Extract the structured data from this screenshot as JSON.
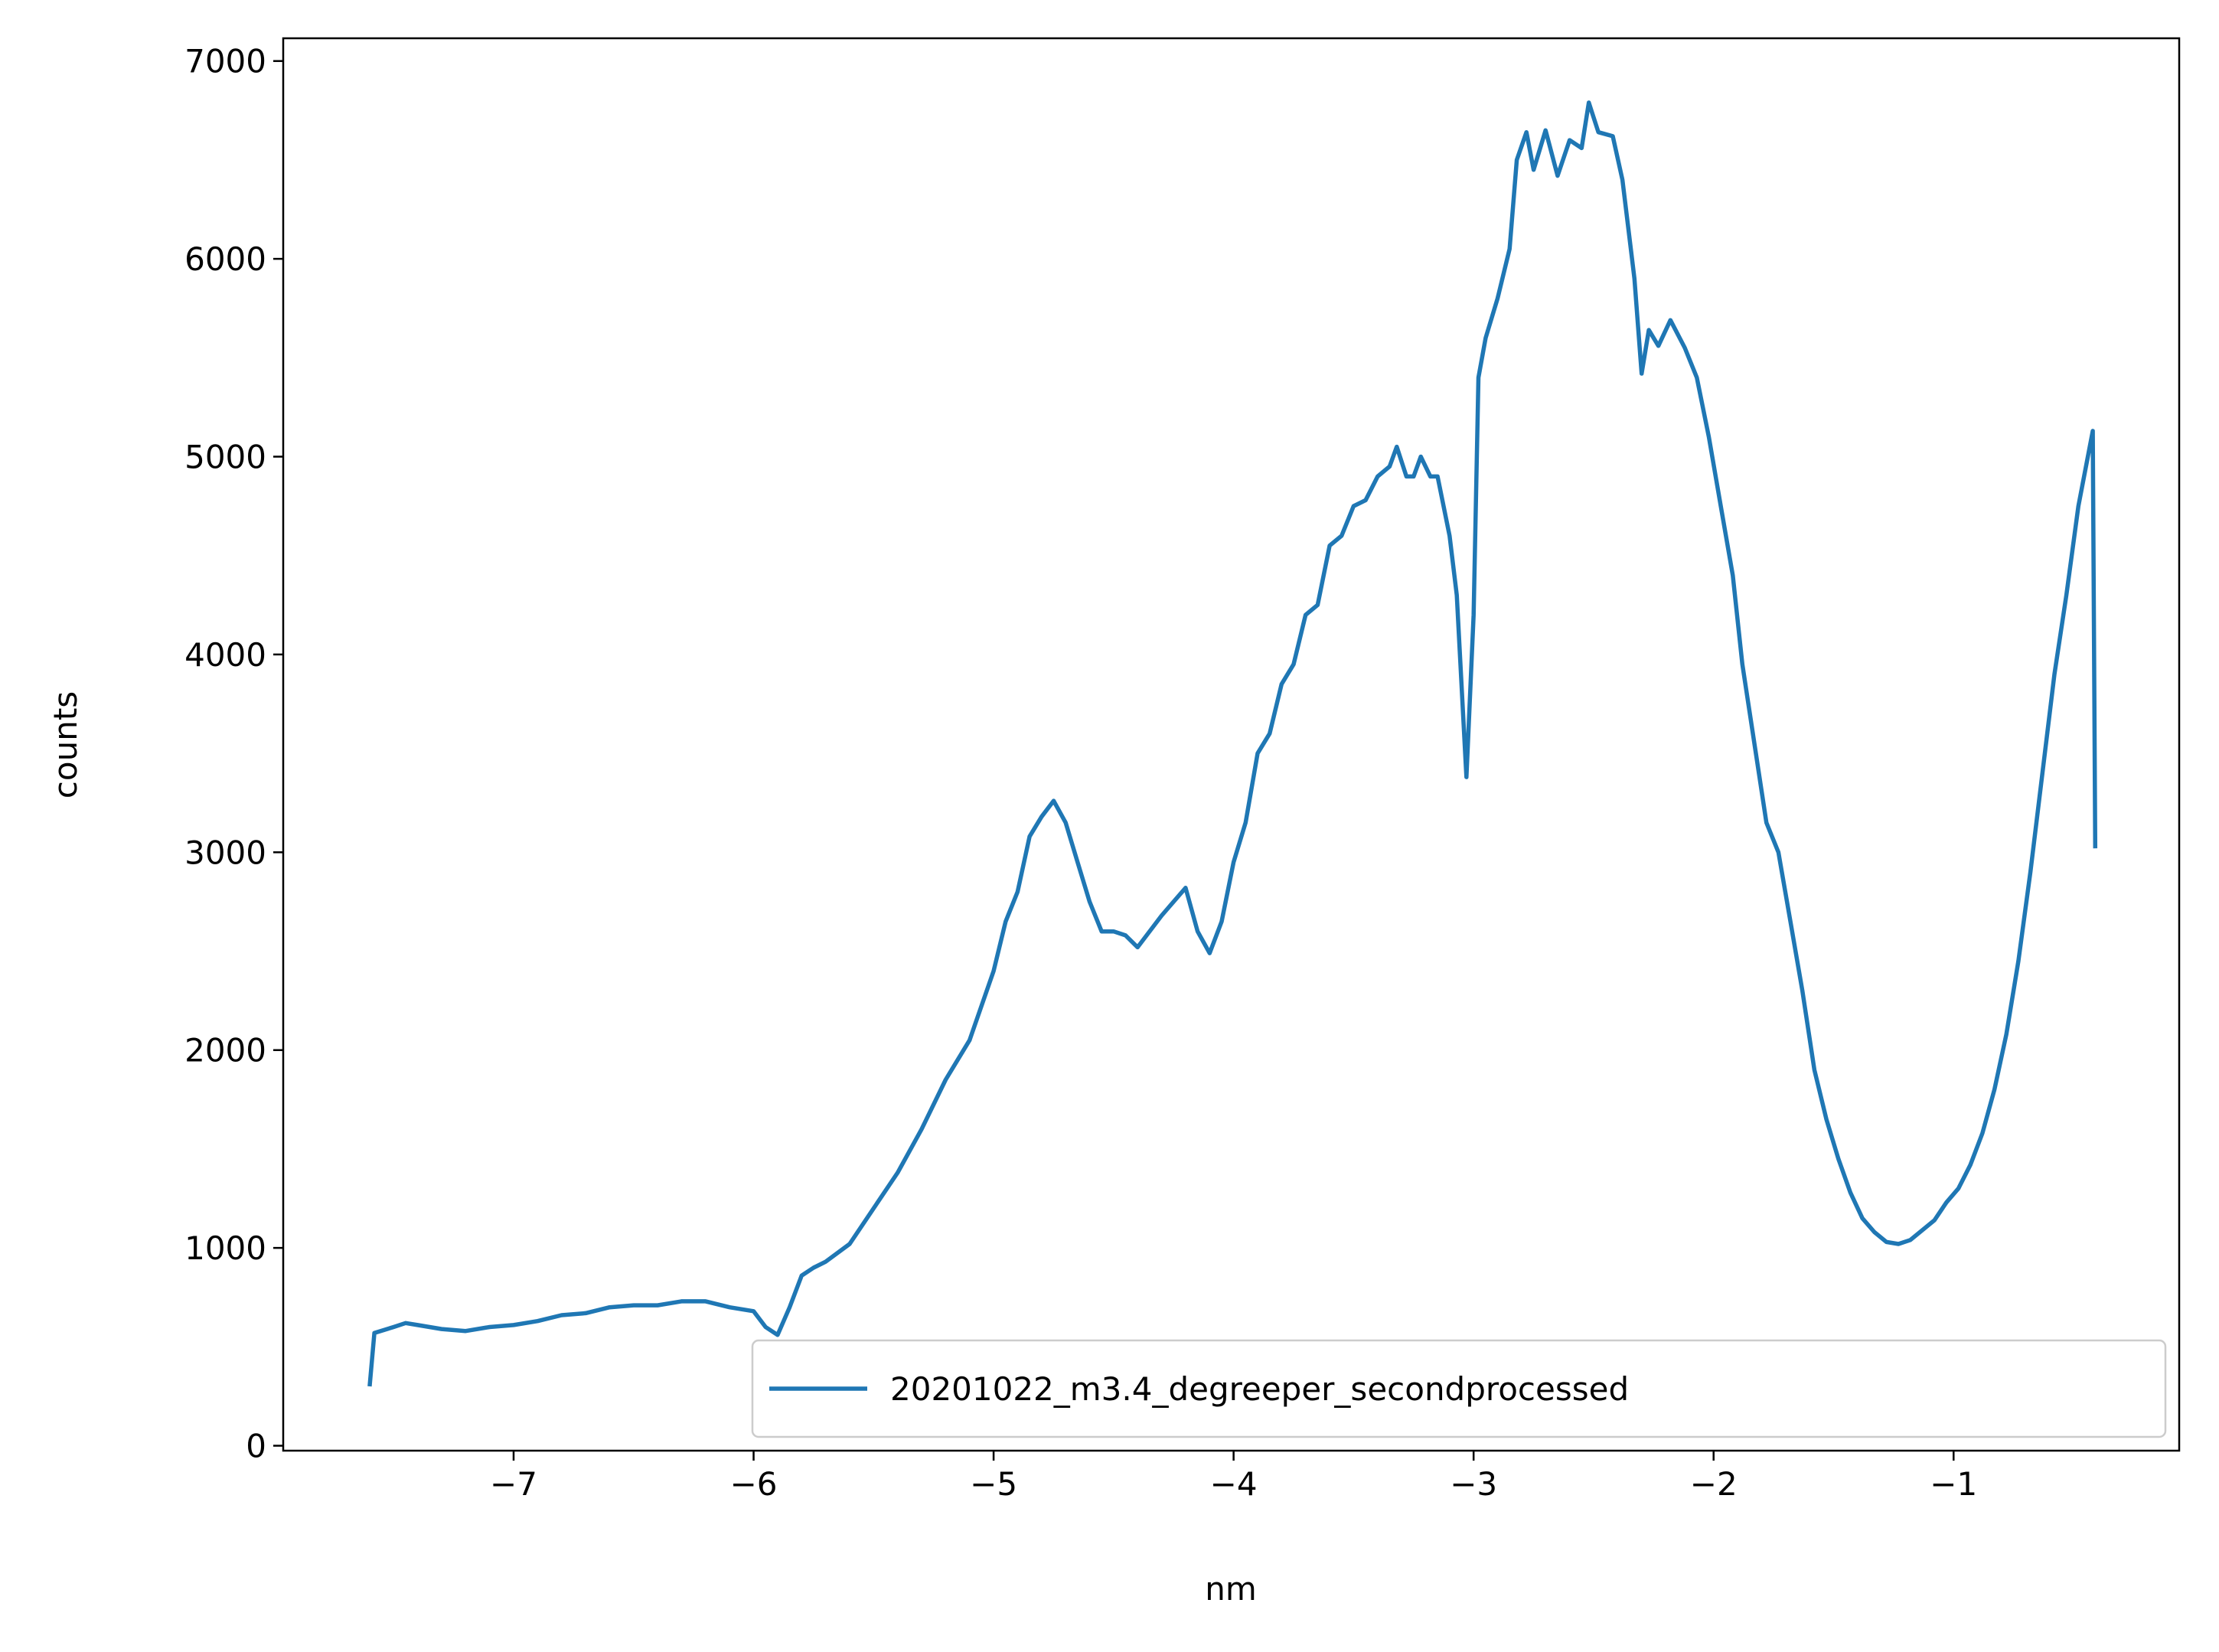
{
  "chart_data": {
    "type": "line",
    "xlabel": "nm",
    "ylabel": "counts",
    "xlim": [
      -7.96,
      -0.06
    ],
    "ylim": [
      -25,
      7115
    ],
    "xticks": [
      {
        "value": -7,
        "label": "−7"
      },
      {
        "value": -6,
        "label": "−6"
      },
      {
        "value": -5,
        "label": "−5"
      },
      {
        "value": -4,
        "label": "−4"
      },
      {
        "value": -3,
        "label": "−3"
      },
      {
        "value": -2,
        "label": "−2"
      },
      {
        "value": -1,
        "label": "−1"
      }
    ],
    "yticks": [
      0,
      1000,
      2000,
      3000,
      4000,
      5000,
      6000,
      7000
    ],
    "legend": "lower right",
    "x": [
      -7.6,
      -7.58,
      -7.5,
      -7.45,
      -7.4,
      -7.3,
      -7.2,
      -7.1,
      -7.0,
      -6.9,
      -6.8,
      -6.7,
      -6.6,
      -6.5,
      -6.4,
      -6.3,
      -6.2,
      -6.1,
      -6.0,
      -5.95,
      -5.9,
      -5.85,
      -5.8,
      -5.75,
      -5.7,
      -5.6,
      -5.5,
      -5.4,
      -5.3,
      -5.2,
      -5.1,
      -5.0,
      -4.95,
      -4.9,
      -4.85,
      -4.8,
      -4.75,
      -4.7,
      -4.65,
      -4.6,
      -4.55,
      -4.5,
      -4.45,
      -4.4,
      -4.3,
      -4.2,
      -4.15,
      -4.1,
      -4.05,
      -4.0,
      -3.95,
      -3.9,
      -3.85,
      -3.8,
      -3.75,
      -3.7,
      -3.65,
      -3.6,
      -3.55,
      -3.5,
      -3.45,
      -3.4,
      -3.35,
      -3.32,
      -3.28,
      -3.25,
      -3.22,
      -3.18,
      -3.15,
      -3.1,
      -3.07,
      -3.03,
      -3.0,
      -2.98,
      -2.95,
      -2.9,
      -2.85,
      -2.82,
      -2.78,
      -2.75,
      -2.7,
      -2.65,
      -2.6,
      -2.55,
      -2.52,
      -2.48,
      -2.42,
      -2.38,
      -2.33,
      -2.3,
      -2.27,
      -2.23,
      -2.18,
      -2.12,
      -2.07,
      -2.02,
      -1.97,
      -1.92,
      -1.88,
      -1.83,
      -1.78,
      -1.73,
      -1.68,
      -1.63,
      -1.58,
      -1.53,
      -1.48,
      -1.43,
      -1.38,
      -1.33,
      -1.28,
      -1.23,
      -1.18,
      -1.13,
      -1.08,
      -1.03,
      -0.98,
      -0.93,
      -0.88,
      -0.83,
      -0.78,
      -0.73,
      -0.68,
      -0.63,
      -0.58,
      -0.53,
      -0.48,
      -0.42,
      -0.41
    ],
    "series": [
      {
        "name": "20201022_m3.4_degreeper_secondprocessed",
        "color": "#1f77b4",
        "values": [
          300,
          570,
          600,
          620,
          610,
          590,
          580,
          600,
          610,
          630,
          660,
          670,
          700,
          710,
          710,
          730,
          730,
          700,
          680,
          600,
          560,
          700,
          860,
          900,
          930,
          1020,
          1200,
          1380,
          1600,
          1850,
          2050,
          2400,
          2650,
          2800,
          3080,
          3180,
          3260,
          3150,
          2950,
          2750,
          2600,
          2600,
          2580,
          2520,
          2680,
          2820,
          2600,
          2490,
          2650,
          2950,
          3150,
          3500,
          3600,
          3850,
          3950,
          4200,
          4250,
          4550,
          4600,
          4750,
          4780,
          4900,
          4950,
          5050,
          4900,
          4900,
          5000,
          4900,
          4900,
          4600,
          4300,
          3380,
          4200,
          5400,
          5600,
          5800,
          6050,
          6500,
          6640,
          6450,
          6650,
          6420,
          6600,
          6560,
          6790,
          6640,
          6620,
          6400,
          5900,
          5420,
          5640,
          5560,
          5690,
          5550,
          5400,
          5100,
          4750,
          4400,
          3950,
          3550,
          3150,
          3000,
          2650,
          2300,
          1900,
          1650,
          1450,
          1280,
          1150,
          1080,
          1030,
          1020,
          1040,
          1090,
          1140,
          1230,
          1300,
          1420,
          1580,
          1800,
          2080,
          2450,
          2900,
          3400,
          3900,
          4300,
          4750,
          5130,
          3020
        ]
      }
    ]
  }
}
